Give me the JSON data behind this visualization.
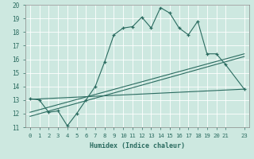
{
  "xlabel": "Humidex (Indice chaleur)",
  "bg_color": "#cde8e0",
  "grid_color": "#b0d8d0",
  "line_color": "#2a6b60",
  "xlim": [
    -0.5,
    23.5
  ],
  "ylim": [
    11,
    20
  ],
  "yticks": [
    11,
    12,
    13,
    14,
    15,
    16,
    17,
    18,
    19,
    20
  ],
  "xticks": [
    0,
    1,
    2,
    3,
    4,
    5,
    6,
    7,
    8,
    9,
    10,
    11,
    12,
    13,
    14,
    15,
    16,
    17,
    18,
    19,
    20,
    21,
    23
  ],
  "xtick_labels": [
    "0",
    "1",
    "2",
    "3",
    "4",
    "5",
    "6",
    "7",
    "8",
    "9",
    "10",
    "11",
    "12",
    "13",
    "14",
    "15",
    "16",
    "17",
    "18",
    "19",
    "20",
    "21",
    "23"
  ],
  "main_x": [
    0,
    1,
    2,
    3,
    4,
    5,
    6,
    7,
    8,
    9,
    10,
    11,
    12,
    13,
    14,
    15,
    16,
    17,
    18,
    19,
    20,
    21,
    23
  ],
  "main_y": [
    13.1,
    13.0,
    12.1,
    12.2,
    11.1,
    12.0,
    13.0,
    14.0,
    15.8,
    17.8,
    18.3,
    18.4,
    19.1,
    18.3,
    19.8,
    19.4,
    18.3,
    17.8,
    18.8,
    16.4,
    16.4,
    15.6,
    13.8
  ],
  "line2_x": [
    0,
    23
  ],
  "line2_y": [
    13.05,
    13.8
  ],
  "line3_x": [
    0,
    23
  ],
  "line3_y": [
    12.1,
    16.4
  ],
  "line4_x": [
    0,
    23
  ],
  "line4_y": [
    11.8,
    16.2
  ]
}
